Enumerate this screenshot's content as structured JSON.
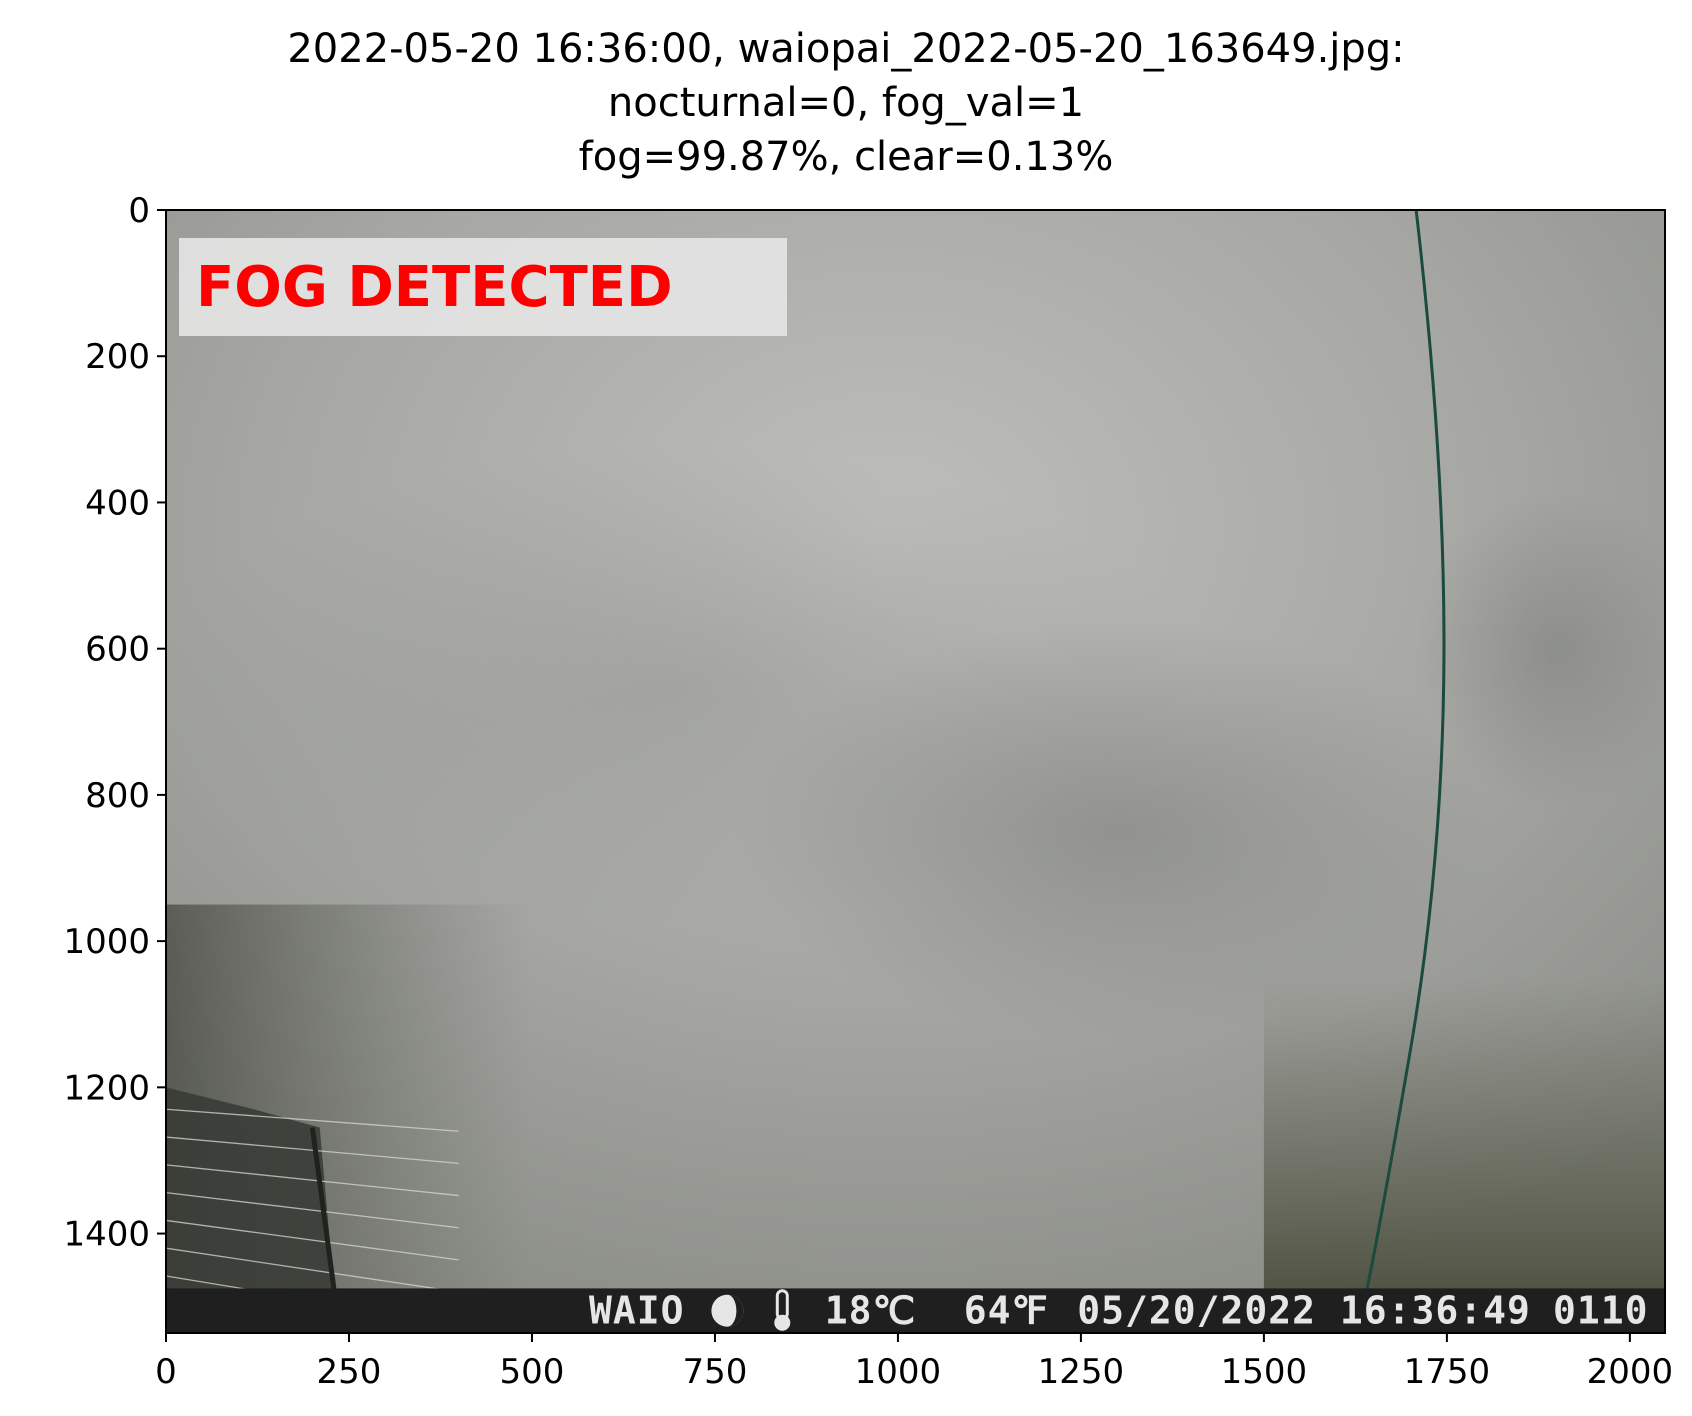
{
  "title": {
    "line1": "2022-05-20 16:36:00, waiopai_2022-05-20_163649.jpg:",
    "line2": "nocturnal=0, fog_val=1",
    "line3": "fog=99.87%, clear=0.13%"
  },
  "overlay": {
    "label": "FOG DETECTED",
    "label_color": "#ff0000"
  },
  "camera_stamp": {
    "station": "WAIO",
    "moon_icon": "moon-phase-icon",
    "thermometer_icon": "thermometer-icon",
    "temp_c": "18℃",
    "temp_f": "64℉",
    "datetime": "05/20/2022 16:36:49",
    "frame": "0110"
  },
  "chart_data": {
    "type": "image",
    "xlim": [
      0,
      2048
    ],
    "ylim": [
      1536,
      0
    ],
    "x_ticks": [
      0,
      250,
      500,
      750,
      1000,
      1250,
      1500,
      1750,
      2000
    ],
    "y_ticks": [
      0,
      200,
      400,
      600,
      800,
      1000,
      1200,
      1400
    ],
    "grid": false
  },
  "colors": {
    "fog_light": "#bcbdba",
    "fog_mid": "#a9aaa6",
    "fog_dark": "#8d8f88",
    "ground_dark": "#3f4237",
    "stamp_bg": "#1f1f1f",
    "wire": "#1b4a3e"
  }
}
